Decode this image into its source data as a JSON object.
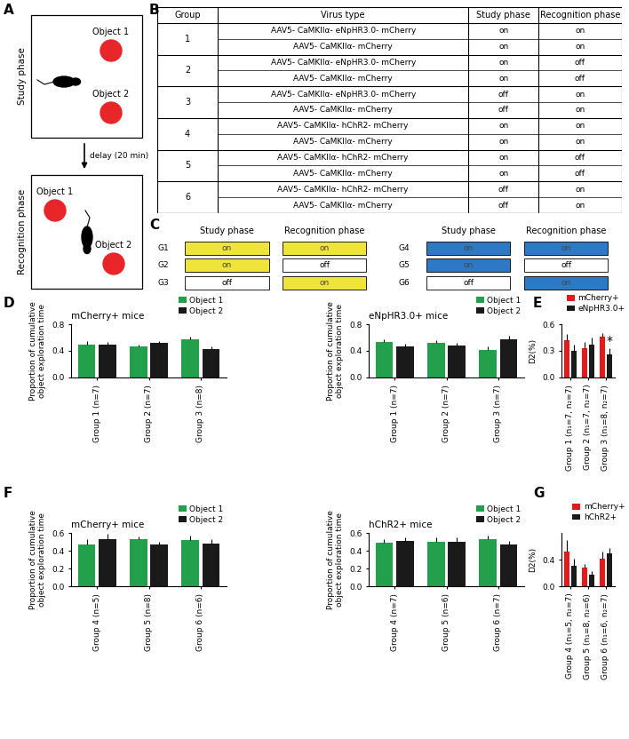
{
  "panel_letters": [
    "A",
    "B",
    "C",
    "D",
    "E",
    "F",
    "G"
  ],
  "diagram": {
    "phases": [
      {
        "label": "Study phase",
        "objects": [
          "Object 1",
          "Object 2"
        ]
      },
      {
        "label": "Recognition phase",
        "objects": [
          "Object 1",
          "Object 2"
        ]
      }
    ],
    "delay": "delay (20 min)",
    "object_color": "#e8262a"
  },
  "table": {
    "header": [
      "Group",
      "Virus type",
      "Study phase",
      "Recognition phase"
    ],
    "rows": [
      {
        "group": "1",
        "entries": [
          [
            "AAV5- CaMKIIα- eNpHR3.0- mCherry",
            "on",
            "on"
          ],
          [
            "AAV5- CaMKIIα- mCherry",
            "on",
            "on"
          ]
        ]
      },
      {
        "group": "2",
        "entries": [
          [
            "AAV5- CaMKIIα- eNpHR3.0- mCherry",
            "on",
            "off"
          ],
          [
            "AAV5- CaMKIIα- mCherry",
            "on",
            "off"
          ]
        ]
      },
      {
        "group": "3",
        "entries": [
          [
            "AAV5- CaMKIIα- eNpHR3.0- mCherry",
            "off",
            "on"
          ],
          [
            "AAV5- CaMKIIα- mCherry",
            "off",
            "on"
          ]
        ]
      },
      {
        "group": "4",
        "entries": [
          [
            "AAV5- CaMKIIα- hChR2- mCherry",
            "on",
            "on"
          ],
          [
            "AAV5- CaMKIIα- mCherry",
            "on",
            "on"
          ]
        ]
      },
      {
        "group": "5",
        "entries": [
          [
            "AAV5- CaMKIIα- hChR2- mCherry",
            "on",
            "off"
          ],
          [
            "AAV5- CaMKIIα- mCherry",
            "on",
            "off"
          ]
        ]
      },
      {
        "group": "6",
        "entries": [
          [
            "AAV5- CaMKIIα- hChR2- mCherry",
            "off",
            "on"
          ],
          [
            "AAV5- CaMKIIα- mCherry",
            "off",
            "on"
          ]
        ]
      }
    ]
  },
  "schedule": {
    "header": [
      "Study phase",
      "Recognition phase"
    ],
    "states": [
      "off",
      "on"
    ],
    "blocks": [
      {
        "color": "#efe53a",
        "rows": [
          [
            "G1",
            "on",
            "on"
          ],
          [
            "G2",
            "on",
            "off"
          ],
          [
            "G3",
            "off",
            "on"
          ]
        ]
      },
      {
        "color": "#2e78c8",
        "rows": [
          [
            "G4",
            "on",
            "on"
          ],
          [
            "G5",
            "on",
            "off"
          ],
          [
            "G6",
            "off",
            "on"
          ]
        ]
      }
    ]
  },
  "chart_data": [
    {
      "type": "bar",
      "title": "mCherry+ mice",
      "y_label": "Proportion of cumulative\nobject exploration time",
      "categories": [
        "Group 1 (n=7)",
        "Group 2 (n=7)",
        "Group 3 (n=8)"
      ],
      "series": [
        {
          "name": "Object 1",
          "color": "#22a04b",
          "values": [
            0.5,
            0.47,
            0.57
          ],
          "errors": [
            0.05,
            0.03,
            0.04
          ]
        },
        {
          "name": "Object 2",
          "color": "#1a1a1a",
          "values": [
            0.49,
            0.52,
            0.43
          ],
          "errors": [
            0.05,
            0.03,
            0.04
          ]
        }
      ],
      "ylim": [
        0,
        0.8
      ],
      "yticks": [
        {
          "value": 0,
          "label": "0.0"
        },
        0.4,
        0.8
      ],
      "legend": "upper right"
    },
    {
      "type": "bar",
      "title": "eNpHR3.0+ mice",
      "y_label": "Proportion of cumulative\nobject exploration time",
      "categories": [
        "Group 1 (n=7)",
        "Group 2 (n=7)",
        "Group 3 (n=7)"
      ],
      "series": [
        {
          "name": "Object 1",
          "color": "#22a04b",
          "values": [
            0.53,
            0.52,
            0.42
          ],
          "errors": [
            0.04,
            0.04,
            0.05
          ]
        },
        {
          "name": "Object 2",
          "color": "#1a1a1a",
          "values": [
            0.47,
            0.48,
            0.58
          ],
          "errors": [
            0.04,
            0.04,
            0.05
          ]
        }
      ],
      "ylim": [
        0,
        0.8
      ],
      "yticks": [
        {
          "value": 0,
          "label": "0.0"
        },
        0.4,
        0.8
      ],
      "legend": "upper right"
    },
    {
      "type": "bar",
      "y_label": "D2(%)",
      "categories": [
        "Group 1 (n₁=7, n₂=7)",
        "Group 2 (n₁=7, n₂=7)",
        "Group 3 (n₁=8, n₂=7)"
      ],
      "series": [
        {
          "name": "mCherry+",
          "color": "#e41a1c",
          "values": [
            0.42,
            0.33,
            0.46
          ],
          "errors": [
            0.07,
            0.07,
            0.04
          ]
        },
        {
          "name": "eNpHR3.0+",
          "color": "#1a1a1a",
          "values": [
            0.3,
            0.37,
            0.26
          ],
          "errors": [
            0.07,
            0.08,
            0.07
          ]
        }
      ],
      "annotations": [
        {
          "text": "*",
          "category": "Group 3 (n₁=8, n₂=7)",
          "series": "eNpHR3.0+"
        }
      ],
      "ylim": [
        0,
        0.6
      ],
      "yticks": [
        {
          "value": 0,
          "label": "0.0"
        },
        0.3,
        0.6
      ],
      "legend": "upper right"
    },
    {
      "type": "bar",
      "title": "mCherry+ mice",
      "y_label": "Proportion of cumulative\nobject exploration time",
      "categories": [
        "Group 4 (n=5)",
        "Group 5 (n=8)",
        "Group 6 (n=6)"
      ],
      "series": [
        {
          "name": "Object 1",
          "color": "#22a04b",
          "values": [
            0.47,
            0.53,
            0.52
          ],
          "errors": [
            0.06,
            0.03,
            0.05
          ]
        },
        {
          "name": "Object 2",
          "color": "#1a1a1a",
          "values": [
            0.53,
            0.47,
            0.48
          ],
          "errors": [
            0.06,
            0.03,
            0.05
          ]
        }
      ],
      "ylim": [
        0,
        0.6
      ],
      "yticks": [
        {
          "value": 0,
          "label": "0.0"
        },
        0.2,
        0.4,
        0.6
      ],
      "legend": "upper right"
    },
    {
      "type": "bar",
      "title": "hChR2+ mice",
      "y_label": "Proportion of cumulative\nobject exploration time",
      "categories": [
        "Group 4 (n=7)",
        "Group 5 (n=6)",
        "Group 6 (n=7)"
      ],
      "series": [
        {
          "name": "Object 1",
          "color": "#22a04b",
          "values": [
            0.49,
            0.5,
            0.53
          ],
          "errors": [
            0.04,
            0.05,
            0.04
          ]
        },
        {
          "name": "Object 2",
          "color": "#1a1a1a",
          "values": [
            0.51,
            0.5,
            0.47
          ],
          "errors": [
            0.04,
            0.05,
            0.04
          ]
        }
      ],
      "ylim": [
        0,
        0.6
      ],
      "yticks": [
        {
          "value": 0,
          "label": "0.0"
        },
        0.2,
        0.4,
        0.6
      ],
      "legend": "upper right"
    },
    {
      "type": "bar",
      "y_label": "D2(%)",
      "categories": [
        "Group 4 (n₁=5, n₂=7)",
        "Group 5 (n₁=8, n₂=6)",
        "Group 6 (n₁=6, n₂=7)"
      ],
      "series": [
        {
          "name": "mCherry+",
          "color": "#e41a1c",
          "values": [
            0.52,
            0.28,
            0.42
          ],
          "errors": [
            0.17,
            0.05,
            0.1
          ]
        },
        {
          "name": "hChR2+",
          "color": "#1a1a1a",
          "values": [
            0.31,
            0.18,
            0.49
          ],
          "errors": [
            0.1,
            0.05,
            0.09
          ]
        }
      ],
      "ylim": [
        0,
        0.8
      ],
      "yticks": [
        {
          "value": 0,
          "label": "0.0"
        },
        0.4
      ],
      "legend": "upper right"
    }
  ]
}
